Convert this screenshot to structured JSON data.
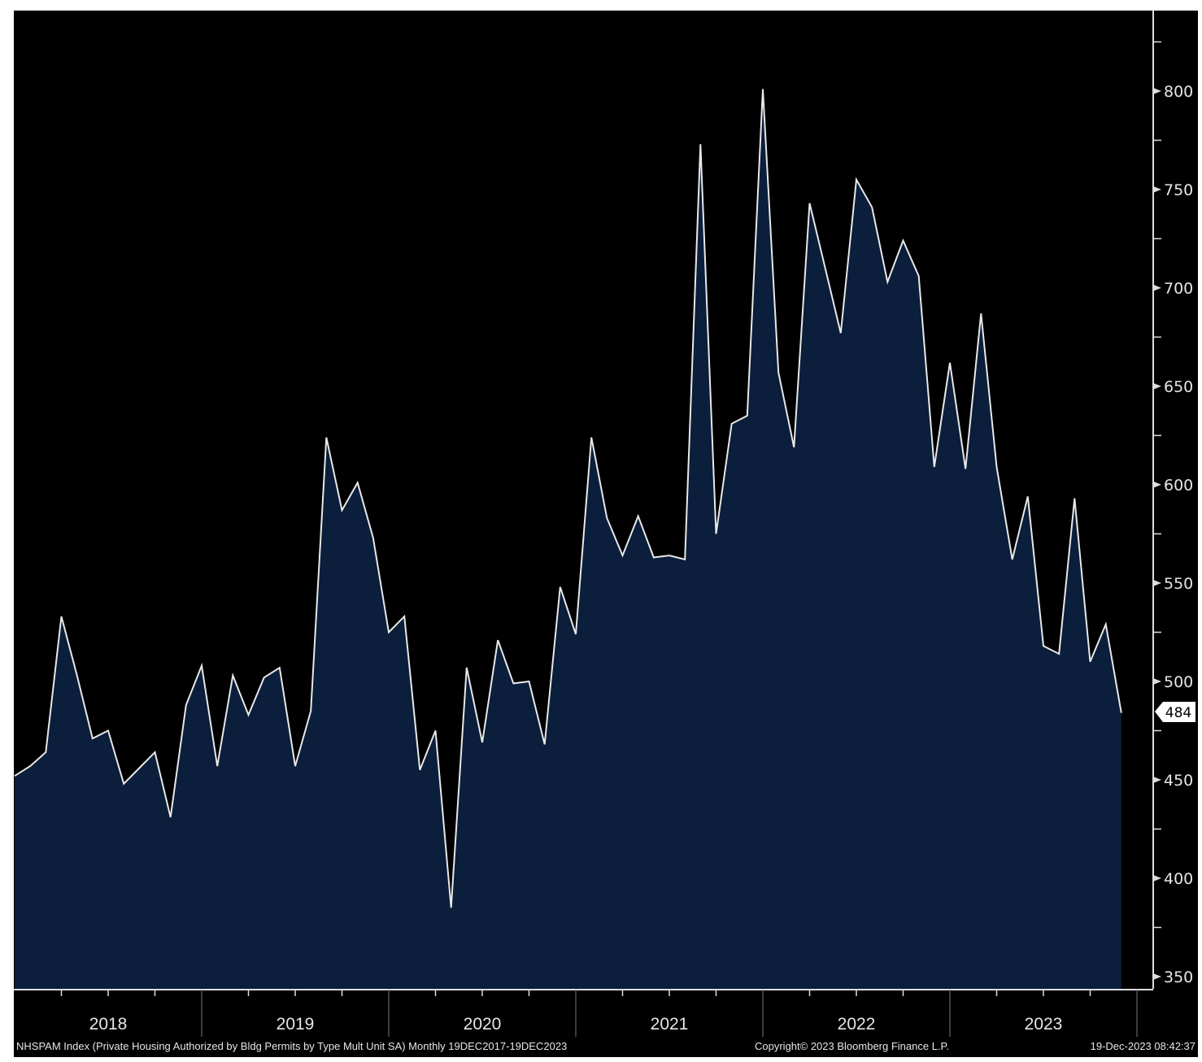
{
  "chart_data": {
    "type": "area",
    "title": "NHSPAM Index (Private Housing Authorized by Bldg Permits by Type Mult Unit SA)",
    "frequency": "Monthly",
    "date_range": "19DEC2017-19DEC2023",
    "x_start": "2017-12",
    "x_end": "2023-11",
    "year_labels": [
      "2018",
      "2019",
      "2020",
      "2021",
      "2022",
      "2023"
    ],
    "y_ticks": [
      "350",
      "400",
      "450",
      "500",
      "550",
      "600",
      "650",
      "700",
      "750",
      "800"
    ],
    "ylim": [
      350,
      850
    ],
    "values": [
      452,
      457,
      464,
      533,
      503,
      471,
      475,
      448,
      456,
      464,
      431,
      488,
      508,
      457,
      503,
      483,
      502,
      507,
      457,
      485,
      624,
      587,
      601,
      573,
      525,
      533,
      455,
      475,
      385,
      507,
      469,
      521,
      499,
      500,
      468,
      548,
      524,
      624,
      583,
      564,
      584,
      563,
      564,
      562,
      773,
      575,
      631,
      635,
      801,
      657,
      619,
      743,
      710,
      677,
      755,
      741,
      703,
      724,
      706,
      609,
      662,
      608,
      687,
      609,
      562,
      594,
      518,
      514,
      593,
      510,
      529,
      484
    ],
    "last_value_label": "484",
    "grid": false,
    "colors": {
      "fill": "#0b1e3b",
      "line": "#e8e8e8",
      "background": "#000000"
    }
  },
  "footer": {
    "description": "NHSPAM Index (Private Housing Authorized by Bldg Permits by Type Mult Unit SA)  Monthly 19DEC2017-19DEC2023",
    "copyright": "Copyright© 2023 Bloomberg Finance L.P.",
    "timestamp": "19-Dec-2023 08:42:37"
  }
}
